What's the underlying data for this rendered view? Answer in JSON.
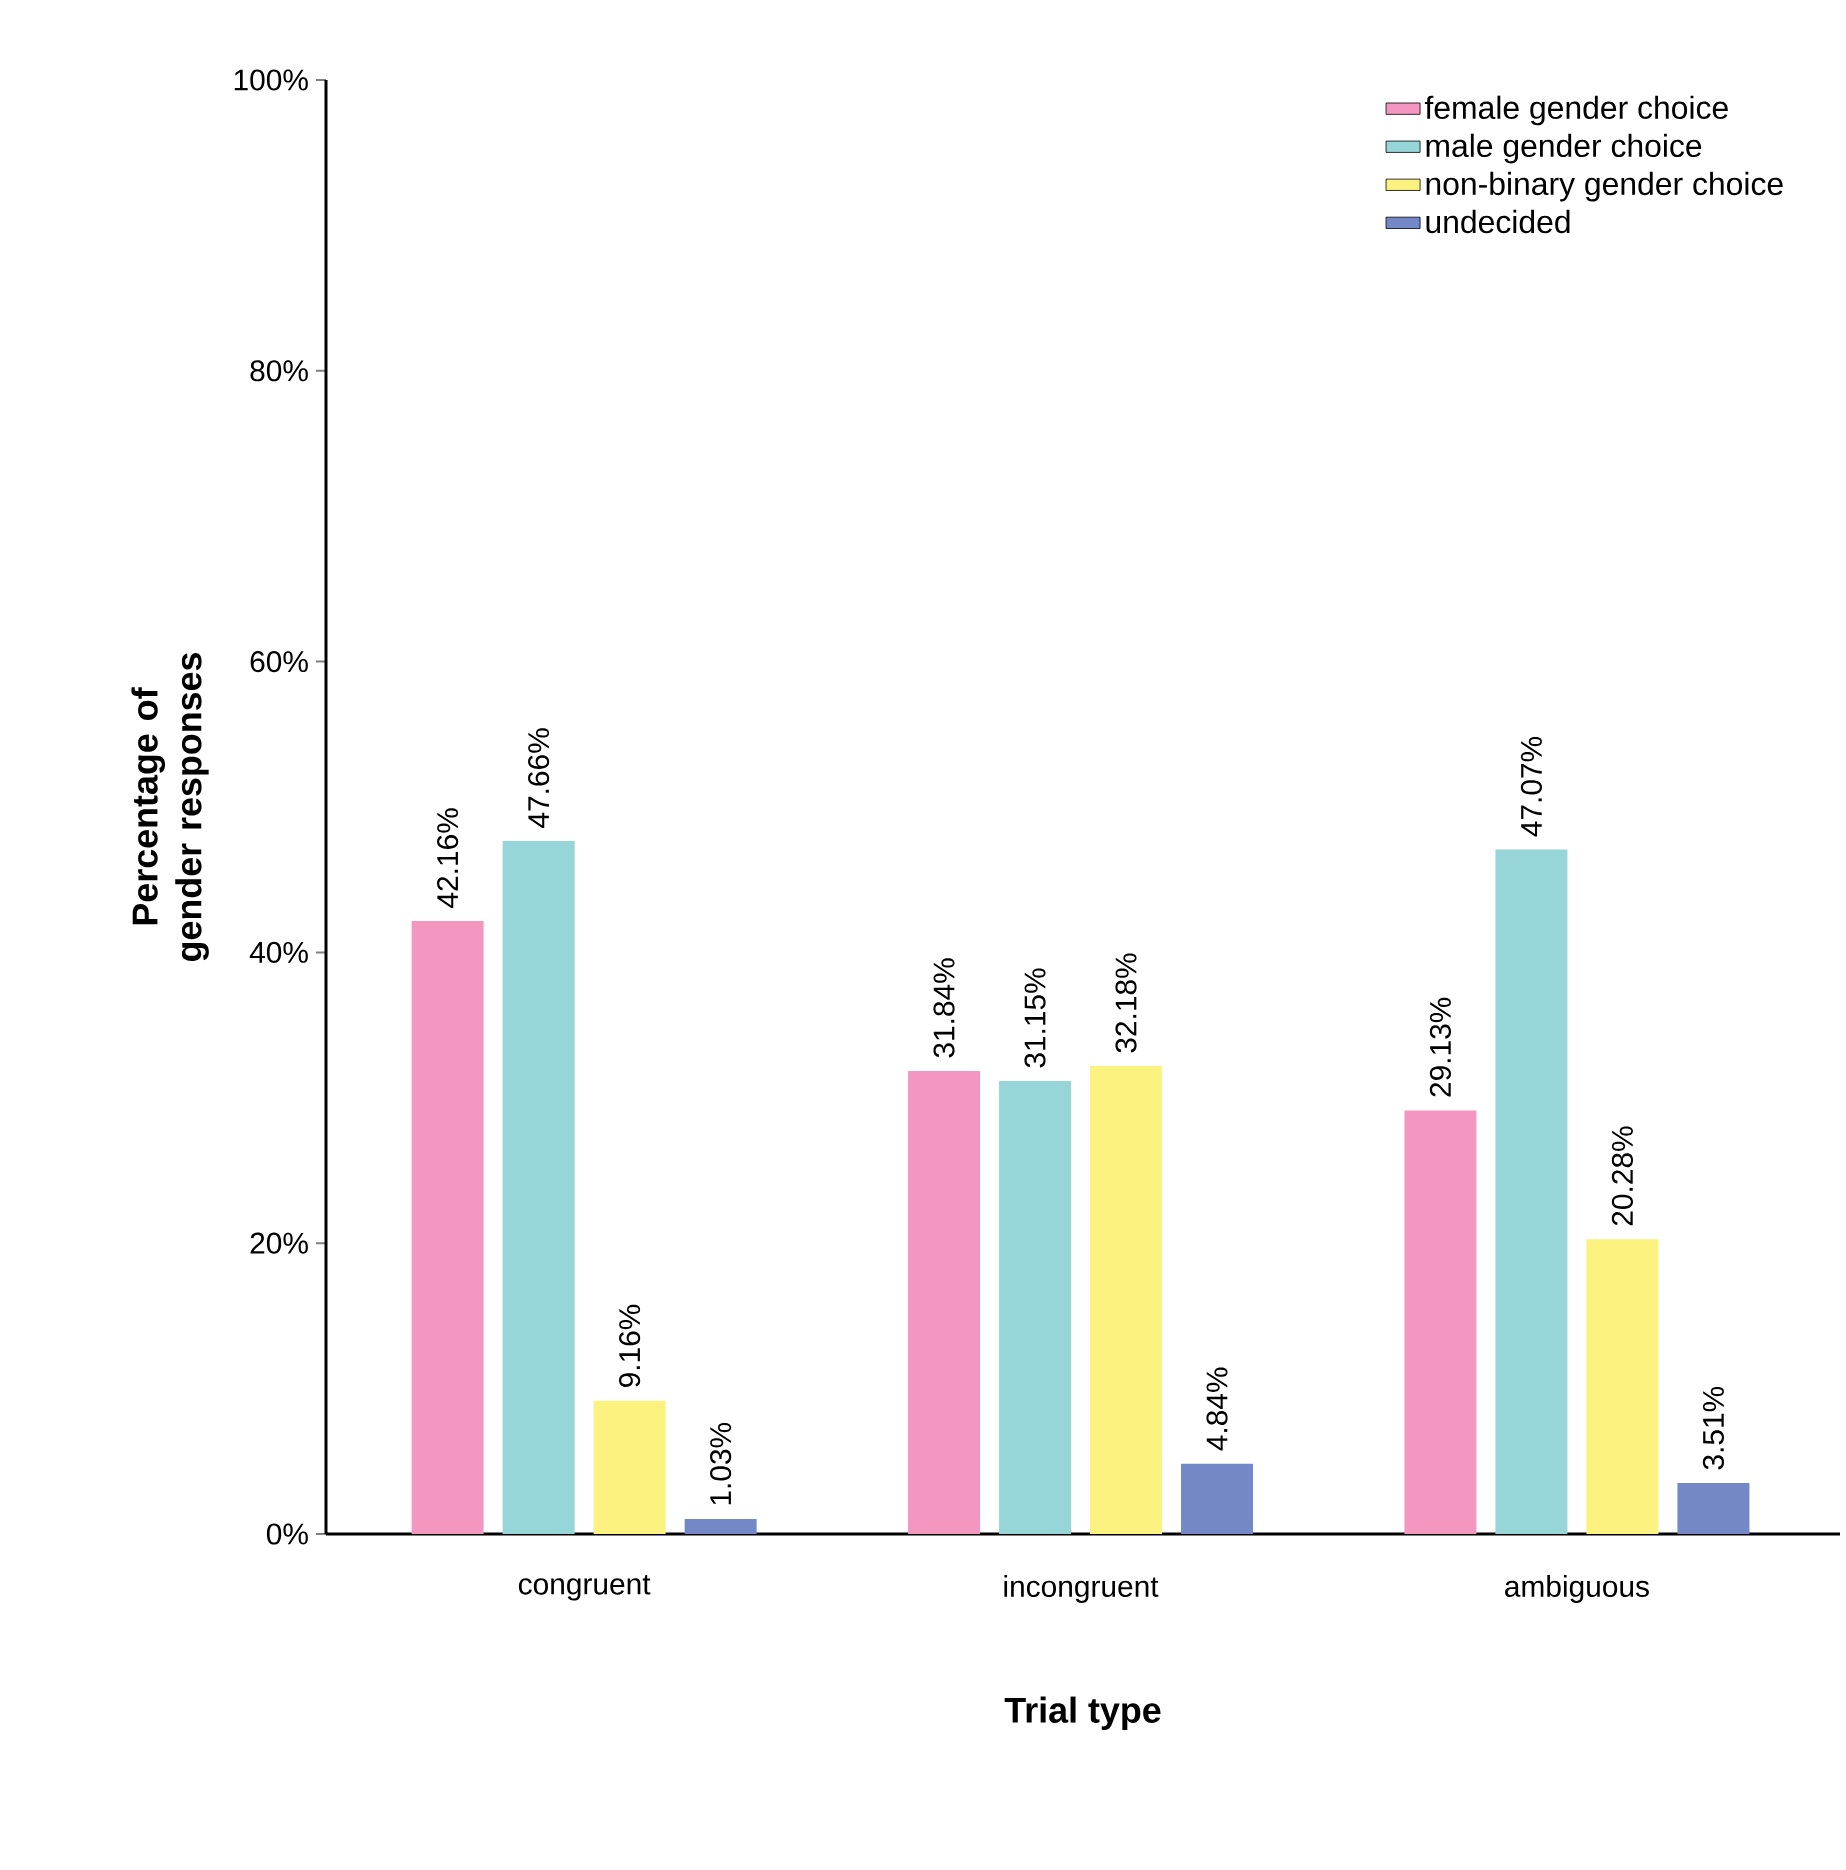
{
  "chart_data": {
    "type": "bar",
    "categories": [
      "congruent",
      "incongruent",
      "ambiguous"
    ],
    "series": [
      {
        "name": "female gender choice",
        "color": "#f497c0",
        "values": [
          42.16,
          31.84,
          29.13
        ],
        "value_labels": [
          "42.16%",
          "31.84%",
          "29.13%"
        ]
      },
      {
        "name": "male gender choice",
        "color": "#96d6d8",
        "values": [
          47.66,
          31.15,
          47.07
        ],
        "value_labels": [
          "47.66%",
          "31.15%",
          "47.07%"
        ]
      },
      {
        "name": "non-binary gender choice",
        "color": "#fbf27f",
        "values": [
          9.16,
          32.18,
          20.28
        ],
        "value_labels": [
          "9.16%",
          "32.18%",
          "20.28%"
        ]
      },
      {
        "name": "undecided",
        "color": "#7487c6",
        "values": [
          1.03,
          4.84,
          3.51
        ],
        "value_labels": [
          "1.03%",
          "4.84%",
          "3.51%"
        ]
      }
    ],
    "xlabel": "Trial type",
    "ylabel": "Percentage of gender responses",
    "ylim": [
      0,
      100
    ],
    "yticks": [
      {
        "value": 0,
        "label": "0%"
      },
      {
        "value": 20,
        "label": "20%"
      },
      {
        "value": 40,
        "label": "40%"
      },
      {
        "value": 60,
        "label": "60%"
      },
      {
        "value": 80,
        "label": "80%"
      },
      {
        "value": 100,
        "label": "100%"
      }
    ],
    "legend": "top right"
  }
}
